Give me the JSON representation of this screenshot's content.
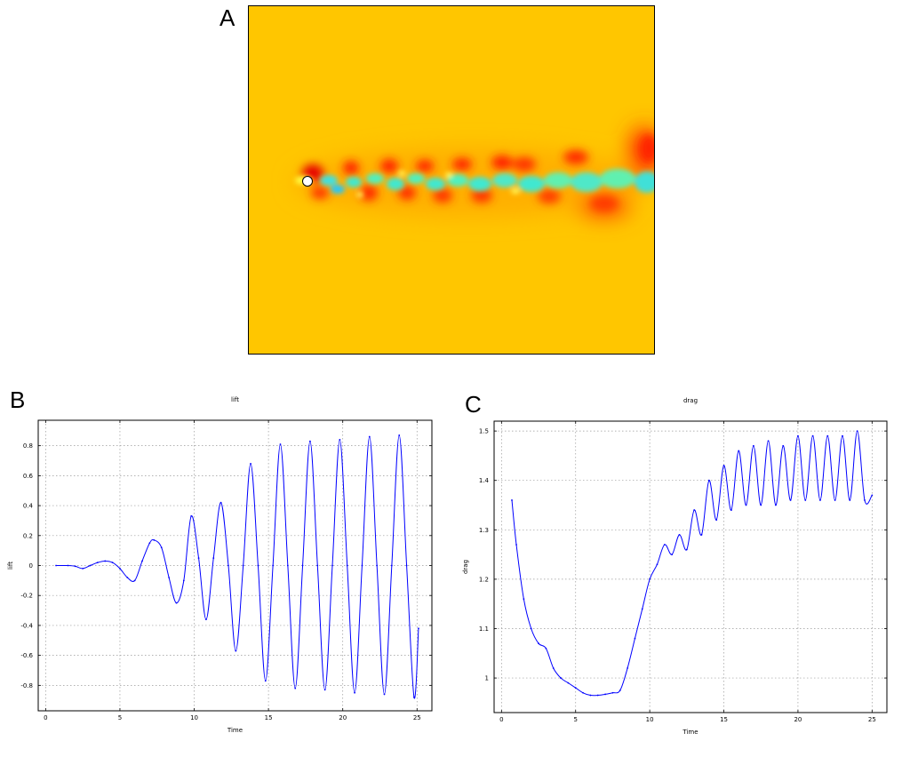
{
  "panels": {
    "a_letter": "A",
    "b_letter": "B",
    "c_letter": "C"
  },
  "colors": {
    "line": "#0000ff",
    "grid": "#9a9a9a",
    "field_background": "#ffc400",
    "vortex_red": "#ff2000",
    "wake_cyan": "#30e0e0"
  },
  "chart_data": [
    {
      "type": "line",
      "title": "lift",
      "xlabel": "Time",
      "ylabel": "lift",
      "xlim": [
        -0.5,
        26
      ],
      "ylim": [
        -0.97,
        0.97
      ],
      "xticks": [
        0,
        5,
        10,
        15,
        20,
        25
      ],
      "yticks": [
        -0.8,
        -0.6,
        -0.4,
        -0.2,
        0,
        0.2,
        0.4,
        0.6,
        0.8
      ],
      "ytick_labels": [
        "-0.8",
        "-0.6",
        "-0.4",
        "-0.2",
        "0",
        "0.2",
        "0.4",
        "0.6",
        "0.8"
      ],
      "grid": true,
      "series": [
        {
          "x": [
            0.7,
            1.5,
            2.0,
            2.5,
            3.0,
            3.5,
            4.0,
            4.5,
            5.0,
            5.5,
            6.0,
            6.5,
            7.0,
            7.3,
            7.8,
            8.3,
            8.8,
            9.3,
            9.8,
            10.3,
            10.8,
            11.3,
            11.8,
            12.3,
            12.8,
            13.3,
            13.8,
            14.3,
            14.8,
            15.3,
            15.8,
            16.3,
            16.8,
            17.3,
            17.8,
            18.3,
            18.8,
            19.3,
            19.8,
            20.3,
            20.8,
            21.3,
            21.8,
            22.3,
            22.8,
            23.3,
            23.8,
            24.3,
            24.8,
            25.1
          ],
          "y": [
            0.0,
            0.0,
            -0.005,
            -0.02,
            0.0,
            0.02,
            0.03,
            0.02,
            -0.02,
            -0.08,
            -0.1,
            0.03,
            0.15,
            0.17,
            0.12,
            -0.08,
            -0.25,
            -0.1,
            0.33,
            0.05,
            -0.36,
            0.05,
            0.42,
            0.0,
            -0.57,
            0.0,
            0.68,
            0.0,
            -0.77,
            0.0,
            0.81,
            0.0,
            -0.82,
            0.0,
            0.83,
            0.0,
            -0.83,
            0.0,
            0.84,
            0.0,
            -0.85,
            0.0,
            0.86,
            0.0,
            -0.86,
            0.0,
            0.87,
            0.0,
            -0.88,
            -0.42
          ]
        }
      ]
    },
    {
      "type": "line",
      "title": "drag",
      "xlabel": "Time",
      "ylabel": "drag",
      "xlim": [
        -0.5,
        26
      ],
      "ylim": [
        0.93,
        1.52
      ],
      "xticks": [
        0,
        5,
        10,
        15,
        20,
        25
      ],
      "yticks": [
        1.0,
        1.1,
        1.2,
        1.3,
        1.4,
        1.5
      ],
      "ytick_labels": [
        "1",
        "1.1",
        "1.2",
        "1.3",
        "1.4",
        "1.5"
      ],
      "grid": true,
      "series": [
        {
          "x": [
            0.7,
            1.0,
            1.5,
            2.0,
            2.5,
            3.0,
            3.5,
            4.0,
            4.5,
            5.0,
            5.5,
            6.0,
            6.5,
            7.0,
            7.5,
            8.0,
            8.5,
            9.0,
            9.5,
            10.0,
            10.5,
            11.0,
            11.5,
            12.0,
            12.5,
            13.0,
            13.5,
            14.0,
            14.5,
            15.0,
            15.5,
            16.0,
            16.5,
            17.0,
            17.5,
            18.0,
            18.5,
            19.0,
            19.5,
            20.0,
            20.5,
            21.0,
            21.5,
            22.0,
            22.5,
            23.0,
            23.5,
            24.0,
            24.5,
            25.0
          ],
          "y": [
            1.36,
            1.27,
            1.16,
            1.1,
            1.07,
            1.06,
            1.02,
            1.0,
            0.99,
            0.98,
            0.97,
            0.965,
            0.965,
            0.967,
            0.97,
            0.975,
            1.02,
            1.08,
            1.14,
            1.2,
            1.23,
            1.27,
            1.25,
            1.29,
            1.26,
            1.34,
            1.29,
            1.4,
            1.32,
            1.43,
            1.34,
            1.46,
            1.35,
            1.47,
            1.35,
            1.48,
            1.35,
            1.47,
            1.36,
            1.49,
            1.36,
            1.49,
            1.36,
            1.49,
            1.36,
            1.49,
            1.36,
            1.5,
            1.36,
            1.37
          ]
        }
      ]
    }
  ]
}
